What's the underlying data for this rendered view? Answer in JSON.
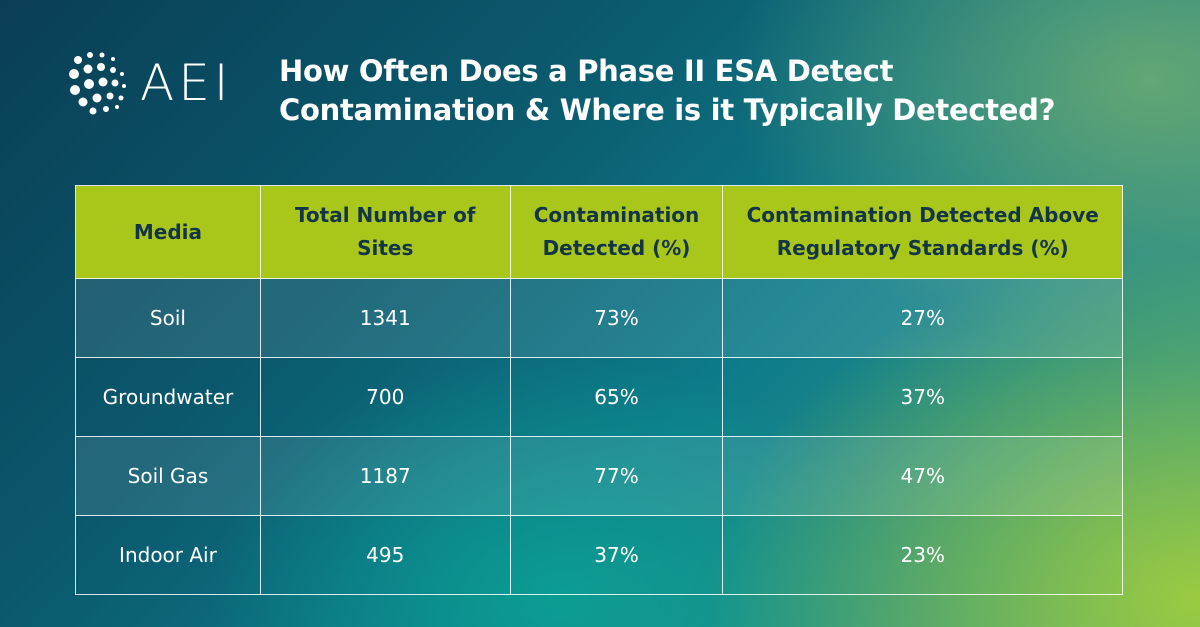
{
  "logo": {
    "text": "AEI"
  },
  "title": {
    "line1": "How Often Does a Phase II ESA Detect",
    "line2": "Contamination & Where is it Typically Detected?"
  },
  "colors": {
    "header_bg": "#a9c71a",
    "header_text": "#143447",
    "body_text": "#ffffff"
  },
  "chart_data": {
    "type": "table",
    "columns": [
      "Media",
      "Total Number of Sites",
      "Contamination Detected (%)",
      "Contamination Detected Above Regulatory Standards (%)"
    ],
    "header_lines": [
      [
        "Media"
      ],
      [
        "Total Number of",
        "Sites"
      ],
      [
        "Contamination",
        "Detected (%)"
      ],
      [
        "Contamination Detected Above",
        "Regulatory Standards (%)"
      ]
    ],
    "rows": [
      [
        "Soil",
        "1341",
        "73%",
        "27%"
      ],
      [
        "Groundwater",
        "700",
        "65%",
        "37%"
      ],
      [
        "Soil Gas",
        "1187",
        "77%",
        "47%"
      ],
      [
        "Indoor Air",
        "495",
        "37%",
        "23%"
      ]
    ]
  }
}
